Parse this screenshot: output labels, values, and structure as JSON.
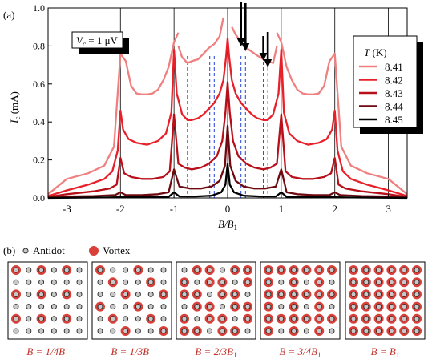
{
  "panel_a_label": "(a)",
  "panel_b_label": "(b)",
  "vc_box": {
    "var": "V",
    "sub": "c",
    "rest": " = 1 μV"
  },
  "legend": {
    "title_var": "T",
    "title_unit": " (K)",
    "entries": [
      {
        "label": "8.41",
        "color": "#f08080"
      },
      {
        "label": "8.42",
        "color": "#e8202a"
      },
      {
        "label": "8.43",
        "color": "#b8101a"
      },
      {
        "label": "8.44",
        "color": "#6e0a10"
      },
      {
        "label": "8.45",
        "color": "#000000"
      }
    ]
  },
  "panel_b": {
    "legend": {
      "antidot": "Antidot",
      "vortex": "Vortex"
    },
    "colors": {
      "antidot_fill": "#c8c8c8",
      "antidot_edge": "#303030",
      "vortex": "#d9403a"
    },
    "captions": [
      {
        "pre": "B = 1/4B",
        "sub": "1"
      },
      {
        "pre": "B = 1/3B",
        "sub": "1"
      },
      {
        "pre": "B = 2/3B",
        "sub": "1"
      },
      {
        "pre": "B = 3/4B",
        "sub": "1"
      },
      {
        "pre": "B = B",
        "sub": "1"
      }
    ],
    "fractions": [
      0.25,
      0.3333,
      0.6667,
      0.75,
      1.0
    ]
  },
  "chart_data": {
    "type": "line",
    "xlabel": {
      "main": "B/B",
      "sub": "1"
    },
    "ylabel": {
      "main": "I",
      "sub": "c",
      "unit": " (mA)"
    },
    "xlim": [
      -3.35,
      3.35
    ],
    "ylim": [
      0,
      1.0
    ],
    "xticks": [
      -3,
      -2,
      -1,
      0,
      1,
      2,
      3
    ],
    "xtick_labels": [
      "-3",
      "-2",
      "-1",
      "0",
      "1",
      "2",
      "3"
    ],
    "yticks": [
      0.0,
      0.2,
      0.4,
      0.6,
      0.8,
      1.0
    ],
    "ytick_labels": [
      "0.0",
      "0.2",
      "0.4",
      "0.6",
      "0.8",
      "1.0"
    ],
    "integer_lines": [
      -3,
      -2,
      -1,
      0,
      1,
      2,
      3
    ],
    "fractional_lines": [
      -0.75,
      -0.6667,
      -0.3333,
      -0.25,
      0.25,
      0.3333,
      0.6667,
      0.75
    ],
    "arrows_at": [
      0.25,
      0.3333,
      0.6667,
      0.75
    ],
    "series": [
      {
        "name": "8.41",
        "color": "#f08080",
        "gap_between": [
          -0.92,
          0.92
        ],
        "x": [
          -3.35,
          -3.0,
          -2.6,
          -2.3,
          -2.12,
          -2.0,
          -1.9,
          -1.8,
          -1.7,
          -1.6,
          -1.5,
          -1.4,
          -1.3,
          -1.2,
          -1.1,
          -1.0,
          -0.92,
          0.92,
          1.0,
          1.1,
          1.2,
          1.3,
          1.4,
          1.5,
          1.6,
          1.7,
          1.8,
          1.9,
          2.0,
          2.12,
          2.3,
          2.6,
          3.0,
          3.35
        ],
        "y": [
          0.02,
          0.1,
          0.13,
          0.17,
          0.27,
          0.76,
          0.72,
          0.59,
          0.55,
          0.545,
          0.545,
          0.55,
          0.57,
          0.62,
          0.69,
          0.82,
          0.87,
          0.87,
          0.82,
          0.69,
          0.62,
          0.57,
          0.55,
          0.545,
          0.545,
          0.55,
          0.59,
          0.72,
          0.76,
          0.27,
          0.17,
          0.13,
          0.1,
          0.02
        ],
        "segment2": {
          "x": [
            -0.92,
            -0.85,
            -0.75,
            -0.67,
            -0.55,
            -0.45,
            -0.35,
            -0.25,
            -0.15,
            -0.08
          ],
          "y": [
            0.8,
            0.74,
            0.71,
            0.72,
            0.73,
            0.76,
            0.79,
            0.81,
            0.85,
            0.95
          ]
        },
        "segment3": {
          "x": [
            0.08,
            0.15,
            0.25,
            0.35,
            0.45,
            0.55,
            0.67,
            0.75,
            0.85,
            0.92
          ],
          "y": [
            0.9,
            0.86,
            0.82,
            0.79,
            0.77,
            0.75,
            0.73,
            0.72,
            0.71,
            0.8
          ]
        }
      },
      {
        "name": "8.42",
        "color": "#e8202a",
        "x": [
          -3.35,
          -3.0,
          -2.6,
          -2.3,
          -2.15,
          -2.05,
          -2.0,
          -1.95,
          -1.85,
          -1.7,
          -1.5,
          -1.3,
          -1.15,
          -1.05,
          -1.0,
          -0.95,
          -0.85,
          -0.75,
          -0.67,
          -0.55,
          -0.45,
          -0.35,
          -0.25,
          -0.15,
          -0.08,
          -0.03,
          0.0,
          0.03,
          0.08,
          0.15,
          0.25,
          0.35,
          0.45,
          0.55,
          0.67,
          0.75,
          0.85,
          0.95,
          1.0,
          1.05,
          1.15,
          1.3,
          1.5,
          1.7,
          1.85,
          1.95,
          2.0,
          2.05,
          2.15,
          2.3,
          2.6,
          3.0,
          3.35
        ],
        "y": [
          0.01,
          0.04,
          0.07,
          0.1,
          0.14,
          0.25,
          0.46,
          0.36,
          0.31,
          0.29,
          0.28,
          0.3,
          0.34,
          0.45,
          0.78,
          0.55,
          0.44,
          0.41,
          0.41,
          0.42,
          0.44,
          0.47,
          0.5,
          0.55,
          0.62,
          0.74,
          0.84,
          0.74,
          0.62,
          0.55,
          0.5,
          0.47,
          0.44,
          0.42,
          0.41,
          0.41,
          0.44,
          0.55,
          0.78,
          0.45,
          0.34,
          0.3,
          0.28,
          0.29,
          0.31,
          0.36,
          0.46,
          0.25,
          0.14,
          0.1,
          0.07,
          0.04,
          0.01
        ]
      },
      {
        "name": "8.43",
        "color": "#b8101a",
        "x": [
          -3.35,
          -3.0,
          -2.5,
          -2.2,
          -2.07,
          -2.0,
          -1.93,
          -1.8,
          -1.6,
          -1.4,
          -1.2,
          -1.08,
          -1.0,
          -0.92,
          -0.8,
          -0.67,
          -0.5,
          -0.35,
          -0.2,
          -0.1,
          -0.04,
          0.0,
          0.04,
          0.1,
          0.2,
          0.35,
          0.5,
          0.67,
          0.8,
          0.92,
          1.0,
          1.08,
          1.2,
          1.4,
          1.6,
          1.8,
          1.93,
          2.0,
          2.07,
          2.2,
          2.5,
          3.0,
          3.35
        ],
        "y": [
          0.005,
          0.02,
          0.035,
          0.05,
          0.07,
          0.21,
          0.13,
          0.11,
          0.1,
          0.1,
          0.11,
          0.14,
          0.44,
          0.18,
          0.16,
          0.15,
          0.16,
          0.18,
          0.22,
          0.3,
          0.45,
          0.61,
          0.45,
          0.3,
          0.22,
          0.18,
          0.16,
          0.15,
          0.16,
          0.18,
          0.44,
          0.14,
          0.11,
          0.1,
          0.1,
          0.11,
          0.13,
          0.21,
          0.07,
          0.05,
          0.035,
          0.02,
          0.005
        ]
      },
      {
        "name": "8.44",
        "color": "#6e0a10",
        "x": [
          -3.35,
          -3.0,
          -2.5,
          -2.1,
          -2.0,
          -1.9,
          -1.6,
          -1.3,
          -1.1,
          -1.0,
          -0.9,
          -0.7,
          -0.5,
          -0.3,
          -0.15,
          -0.05,
          0.0,
          0.05,
          0.15,
          0.3,
          0.5,
          0.7,
          0.9,
          1.0,
          1.1,
          1.3,
          1.6,
          1.9,
          2.0,
          2.1,
          2.5,
          3.0,
          3.35
        ],
        "y": [
          0.002,
          0.008,
          0.01,
          0.015,
          0.03,
          0.015,
          0.015,
          0.02,
          0.03,
          0.15,
          0.06,
          0.05,
          0.05,
          0.06,
          0.09,
          0.17,
          0.38,
          0.17,
          0.09,
          0.06,
          0.05,
          0.05,
          0.06,
          0.15,
          0.03,
          0.02,
          0.015,
          0.015,
          0.03,
          0.015,
          0.01,
          0.008,
          0.002
        ]
      },
      {
        "name": "8.45",
        "color": "#000000",
        "x": [
          -3.35,
          -2.5,
          -2.0,
          -1.5,
          -1.1,
          -1.0,
          -0.9,
          -0.6,
          -0.3,
          -0.12,
          -0.04,
          0.0,
          0.04,
          0.12,
          0.3,
          0.6,
          0.9,
          1.0,
          1.1,
          1.5,
          2.0,
          2.5,
          3.35
        ],
        "y": [
          0.0,
          0.002,
          0.004,
          0.004,
          0.006,
          0.03,
          0.008,
          0.008,
          0.012,
          0.03,
          0.07,
          0.18,
          0.07,
          0.03,
          0.012,
          0.008,
          0.008,
          0.03,
          0.006,
          0.004,
          0.004,
          0.002,
          0.0
        ]
      }
    ]
  }
}
